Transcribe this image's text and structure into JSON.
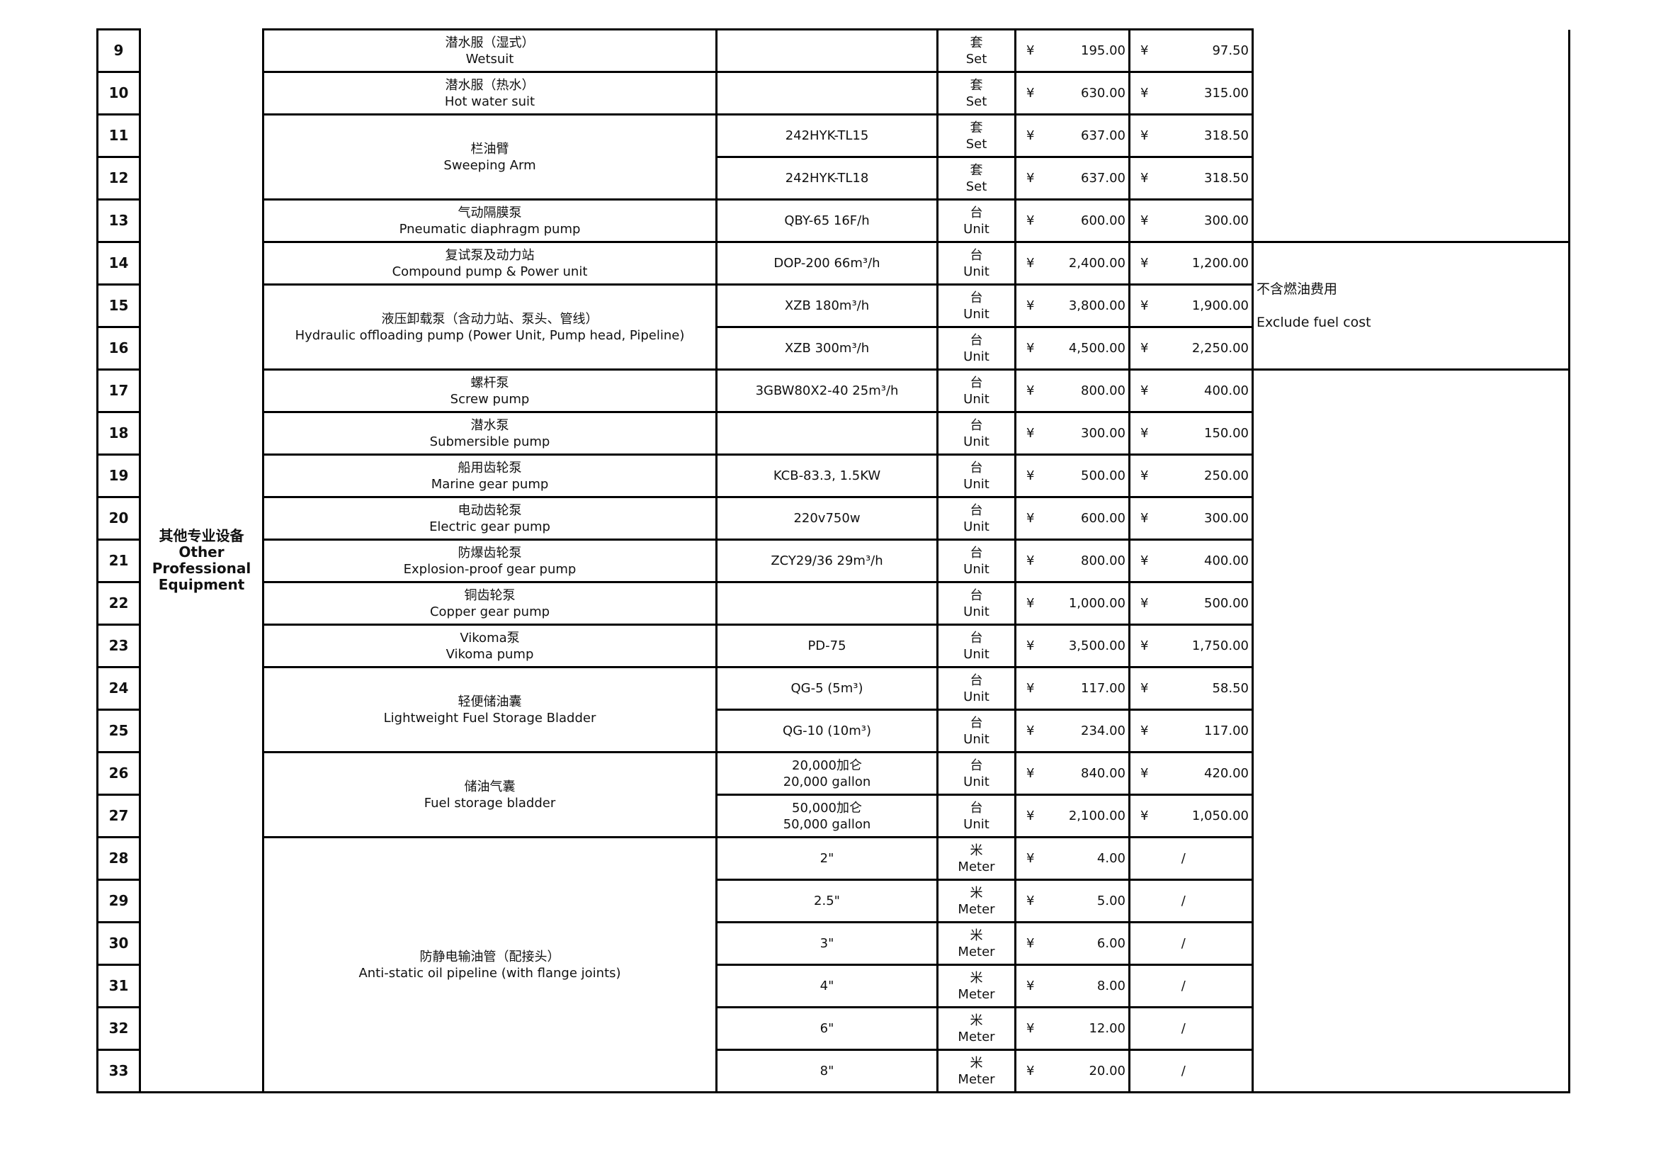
{
  "category": {
    "cn": "其他专业设备",
    "en": "Other\nProfessional\nEquipment"
  },
  "currency": "¥",
  "names": [
    {
      "cn": "潜水服（湿式）",
      "en": "Wetsuit",
      "span": 1
    },
    {
      "cn": "潜水服（热水）",
      "en": "Hot water suit",
      "span": 1
    },
    {
      "cn": "栏油臂",
      "en": "Sweeping Arm",
      "span": 2
    },
    {
      "cn": "气动隔膜泵",
      "en": "Pneumatic diaphragm pump",
      "span": 1
    },
    {
      "cn": "复试泵及动力站",
      "en": "Compound pump & Power unit",
      "span": 1
    },
    {
      "cn": "液压卸载泵（含动力站、泵头、管线）",
      "en": "Hydraulic offloading pump (Power Unit, Pump head, Pipeline)",
      "span": 2
    },
    {
      "cn": "螺杆泵",
      "en": "Screw pump",
      "span": 1
    },
    {
      "cn": "潜水泵",
      "en": "Submersible pump",
      "span": 1
    },
    {
      "cn": "船用齿轮泵",
      "en": "Marine gear pump",
      "span": 1
    },
    {
      "cn": "电动齿轮泵",
      "en": "Electric gear pump",
      "span": 1
    },
    {
      "cn": "防爆齿轮泵",
      "en": "Explosion-proof gear pump",
      "span": 1
    },
    {
      "cn": "铜齿轮泵",
      "en": "Copper gear pump",
      "span": 1
    },
    {
      "cn": "Vikoma泵",
      "en": "Vikoma pump",
      "span": 1
    },
    {
      "cn": "轻便储油囊",
      "en": "Lightweight Fuel Storage Bladder",
      "span": 2
    },
    {
      "cn": "储油气囊",
      "en": "Fuel storage bladder",
      "span": 2
    },
    {
      "cn": "防静电输油管（配接头）",
      "en": "Anti-static oil pipeline (with flange joints)",
      "span": 6
    }
  ],
  "notes": [
    {
      "cn": "",
      "en": "",
      "span": 5
    },
    {
      "cn": "不含燃油费用",
      "en": "Exclude fuel cost",
      "span": 3
    },
    {
      "cn": "",
      "en": "",
      "span": 17
    }
  ],
  "rows": [
    {
      "no": "9",
      "spec": "",
      "unit_cn": "套",
      "unit_en": "Set",
      "price": "195.00",
      "half": "97.50"
    },
    {
      "no": "10",
      "spec": "",
      "unit_cn": "套",
      "unit_en": "Set",
      "price": "630.00",
      "half": "315.00"
    },
    {
      "no": "11",
      "spec": "242HYK-TL15",
      "unit_cn": "套",
      "unit_en": "Set",
      "price": "637.00",
      "half": "318.50"
    },
    {
      "no": "12",
      "spec": "242HYK-TL18",
      "unit_cn": "套",
      "unit_en": "Set",
      "price": "637.00",
      "half": "318.50"
    },
    {
      "no": "13",
      "spec": "QBY-65 16F/h",
      "unit_cn": "台",
      "unit_en": "Unit",
      "price": "600.00",
      "half": "300.00"
    },
    {
      "no": "14",
      "spec": "DOP-200 66m³/h",
      "unit_cn": "台",
      "unit_en": "Unit",
      "price": "2,400.00",
      "half": "1,200.00"
    },
    {
      "no": "15",
      "spec": "XZB 180m³/h",
      "unit_cn": "台",
      "unit_en": "Unit",
      "price": "3,800.00",
      "half": "1,900.00"
    },
    {
      "no": "16",
      "spec": "XZB 300m³/h",
      "unit_cn": "台",
      "unit_en": "Unit",
      "price": "4,500.00",
      "half": "2,250.00"
    },
    {
      "no": "17",
      "spec": "3GBW80X2-40 25m³/h",
      "unit_cn": "台",
      "unit_en": "Unit",
      "price": "800.00",
      "half": "400.00"
    },
    {
      "no": "18",
      "spec": "",
      "unit_cn": "台",
      "unit_en": "Unit",
      "price": "300.00",
      "half": "150.00"
    },
    {
      "no": "19",
      "spec": "KCB-83.3, 1.5KW",
      "unit_cn": "台",
      "unit_en": "Unit",
      "price": "500.00",
      "half": "250.00"
    },
    {
      "no": "20",
      "spec": "220v750w",
      "unit_cn": "台",
      "unit_en": "Unit",
      "price": "600.00",
      "half": "300.00"
    },
    {
      "no": "21",
      "spec": "ZCY29/36 29m³/h",
      "unit_cn": "台",
      "unit_en": "Unit",
      "price": "800.00",
      "half": "400.00"
    },
    {
      "no": "22",
      "spec": "",
      "unit_cn": "台",
      "unit_en": "Unit",
      "price": "1,000.00",
      "half": "500.00"
    },
    {
      "no": "23",
      "spec": "PD-75",
      "unit_cn": "台",
      "unit_en": "Unit",
      "price": "3,500.00",
      "half": "1,750.00"
    },
    {
      "no": "24",
      "spec": "QG-5 (5m³)",
      "unit_cn": "台",
      "unit_en": "Unit",
      "price": "117.00",
      "half": "58.50"
    },
    {
      "no": "25",
      "spec": "QG-10 (10m³)",
      "unit_cn": "台",
      "unit_en": "Unit",
      "price": "234.00",
      "half": "117.00"
    },
    {
      "no": "26",
      "spec": "20,000加仑\n20,000 gallon",
      "unit_cn": "台",
      "unit_en": "Unit",
      "price": "840.00",
      "half": "420.00"
    },
    {
      "no": "27",
      "spec": "50,000加仑\n50,000 gallon",
      "unit_cn": "台",
      "unit_en": "Unit",
      "price": "2,100.00",
      "half": "1,050.00"
    },
    {
      "no": "28",
      "spec": "2\"",
      "unit_cn": "米",
      "unit_en": "Meter",
      "price": "4.00",
      "half": "/"
    },
    {
      "no": "29",
      "spec": "2.5\"",
      "unit_cn": "米",
      "unit_en": "Meter",
      "price": "5.00",
      "half": "/"
    },
    {
      "no": "30",
      "spec": "3\"",
      "unit_cn": "米",
      "unit_en": "Meter",
      "price": "6.00",
      "half": "/"
    },
    {
      "no": "31",
      "spec": "4\"",
      "unit_cn": "米",
      "unit_en": "Meter",
      "price": "8.00",
      "half": "/"
    },
    {
      "no": "32",
      "spec": "6\"",
      "unit_cn": "米",
      "unit_en": "Meter",
      "price": "12.00",
      "half": "/"
    },
    {
      "no": "33",
      "spec": "8\"",
      "unit_cn": "米",
      "unit_en": "Meter",
      "price": "20.00",
      "half": "/"
    }
  ]
}
